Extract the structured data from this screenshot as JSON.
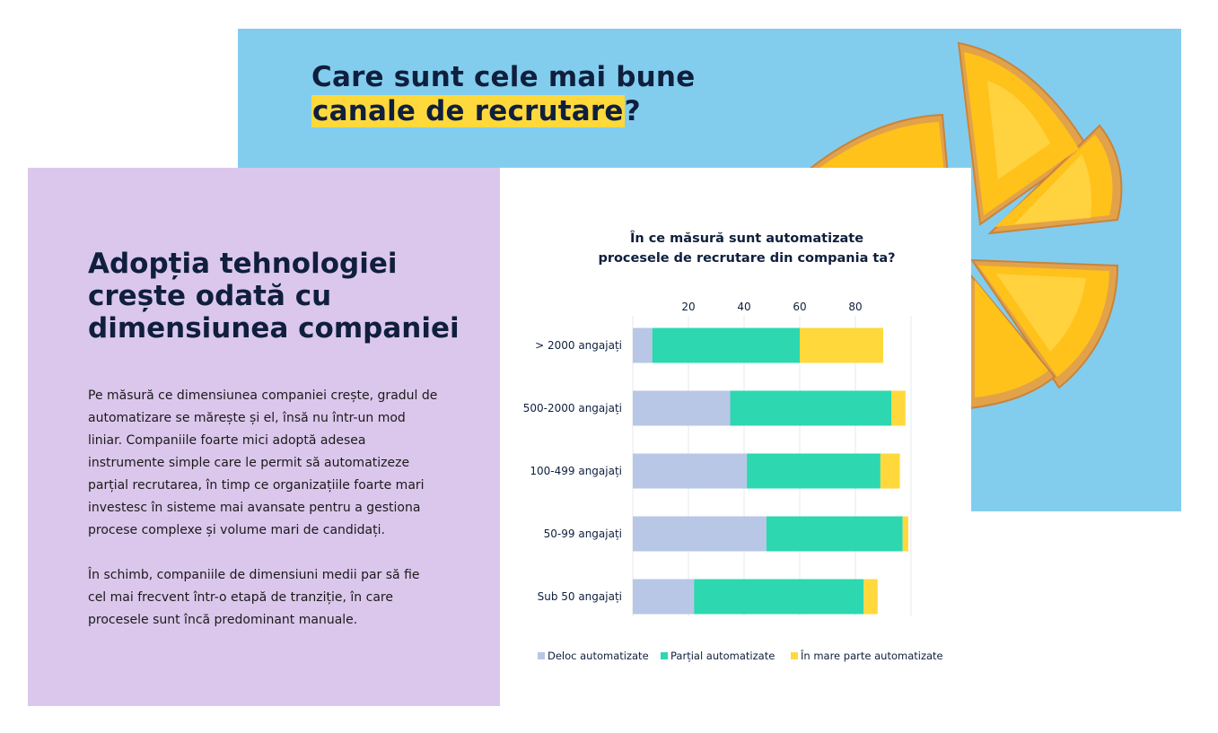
{
  "back_slide": {
    "title_line1": "Care sunt cele mai bune",
    "title_highlight": "canale de recrutare",
    "title_end": "?",
    "bg_color": "#82cdee",
    "highlight_color": "#ffd93b"
  },
  "front_left": {
    "title": "Adopția tehnologiei crește odată cu dimensiunea companiei",
    "paragraph1": "Pe măsură ce dimensiunea companiei crește, gradul de automatizare se mărește și el, însă nu într-un mod liniar. Companiile foarte mici adoptă adesea instrumente simple care le permit să automatizeze parțial recrutarea, în timp ce organizațiile foarte mari investesc în sisteme mai avansate pentru a gestiona procese complexe și volume mari de candidați.",
    "paragraph2": "În schimb, companiile de dimensiuni medii par să fie cel mai frecvent într-o etapă de tranziție, în care procesele sunt încă predominant manuale.",
    "bg_color": "#dcc7ec"
  },
  "chart_data": {
    "type": "bar",
    "orientation": "horizontal",
    "stacked": true,
    "title_line1": "În ce măsură sunt automatizate",
    "title_line2": "procesele de recrutare din compania ta?",
    "categories": [
      "> 2000 angajați",
      "500-2000 angajați",
      "100-499 angajați",
      "50-99 angajați",
      "Sub 50 angajați"
    ],
    "x_ticks": [
      20,
      40,
      60,
      80
    ],
    "xlim": [
      0,
      100
    ],
    "series": [
      {
        "name": "Deloc automatizate",
        "color": "#b8c7e6",
        "values": [
          7,
          35,
          41,
          48,
          22
        ]
      },
      {
        "name": "Parțial automatizate",
        "color": "#2dd7b0",
        "values": [
          53,
          58,
          48,
          49,
          61
        ]
      },
      {
        "name": "În mare parte automatizate",
        "color": "#ffd93b",
        "values": [
          30,
          5,
          7,
          2,
          5
        ]
      }
    ],
    "legend_position": "bottom"
  }
}
